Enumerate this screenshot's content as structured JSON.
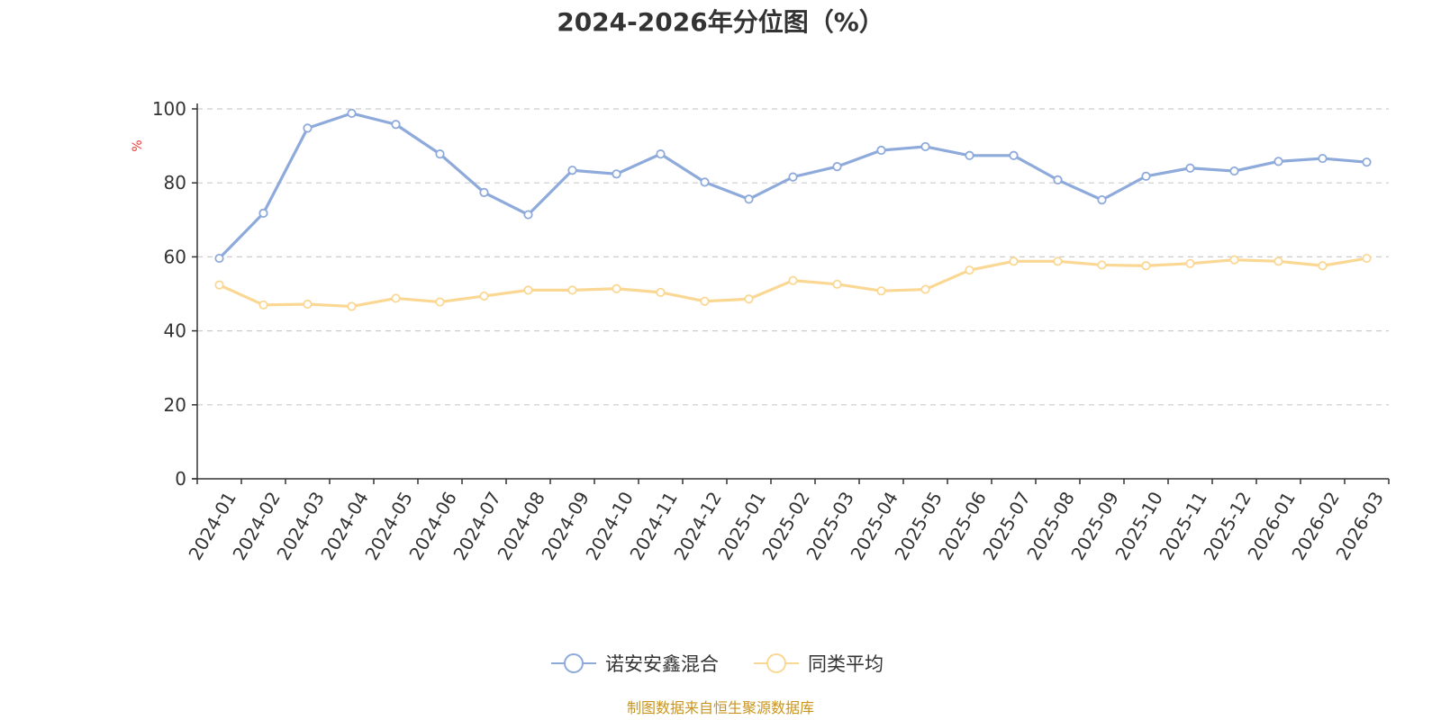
{
  "chart_data": {
    "type": "line",
    "title": "2024-2026年分位图（%）",
    "ylabel": "%",
    "ylim": [
      0,
      100
    ],
    "yticks": [
      "0",
      "20",
      "40",
      "60",
      "80",
      "100"
    ],
    "grid": true,
    "legend_position": "bottom-center",
    "categories": [
      "2024-01",
      "2024-02",
      "2024-03",
      "2024-04",
      "2024-05",
      "2024-06",
      "2024-07",
      "2024-08",
      "2024-09",
      "2024-10",
      "2024-11",
      "2024-12",
      "2025-01",
      "2025-02",
      "2025-03",
      "2025-04",
      "2025-05",
      "2025-06",
      "2025-07",
      "2025-08",
      "2025-09",
      "2025-10",
      "2025-11",
      "2025-12",
      "2026-01",
      "2026-02",
      "2026-03"
    ],
    "series": [
      {
        "name": "诺安安鑫混合",
        "color": "#8eaadb",
        "values": [
          59.6,
          71.8,
          94.8,
          98.8,
          95.8,
          87.8,
          77.4,
          71.4,
          83.4,
          82.4,
          87.8,
          80.2,
          75.6,
          81.6,
          84.4,
          88.8,
          89.8,
          87.4,
          87.4,
          80.8,
          75.4,
          81.8,
          84.0,
          83.2,
          85.8,
          86.6,
          85.6
        ]
      },
      {
        "name": "同类平均",
        "color": "#fad894",
        "values": [
          52.4,
          47.0,
          47.2,
          46.6,
          48.8,
          47.8,
          49.4,
          51.0,
          51.0,
          51.4,
          50.4,
          48.0,
          48.6,
          53.6,
          52.6,
          50.8,
          51.2,
          56.4,
          58.8,
          58.8,
          57.8,
          57.6,
          58.2,
          59.2,
          58.8,
          57.6,
          59.6
        ]
      }
    ],
    "source": "制图数据来自恒生聚源数据库",
    "source_color": "#c8951e",
    "unit_color": "#e53935"
  }
}
